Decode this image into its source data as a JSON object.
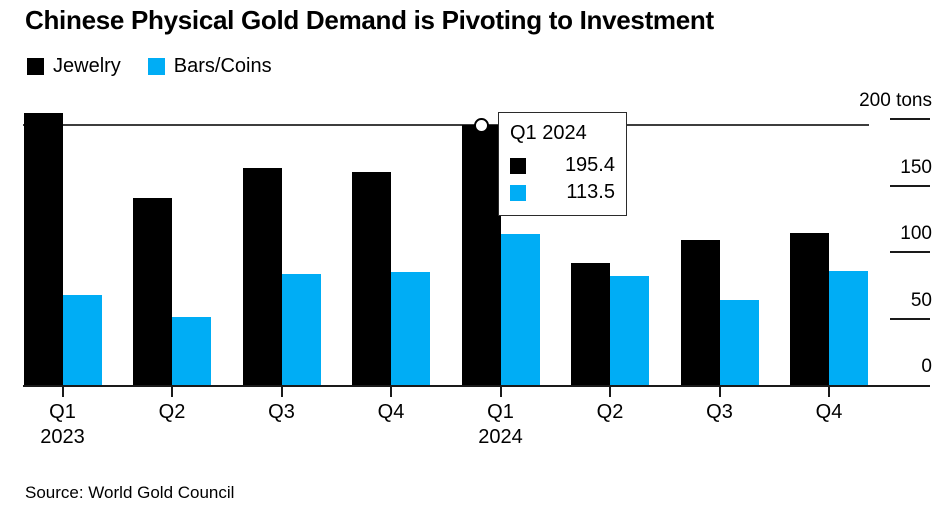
{
  "title": "Chinese Physical Gold Demand is Pivoting to Investment",
  "source": "Source: World Gold Council",
  "colors": {
    "jewelry": "#000000",
    "bars_coins": "#00adf5",
    "axis": "#1a1a1a",
    "hover_line": "#3d3d3d",
    "background": "#ffffff"
  },
  "legend": [
    {
      "label": "Jewelry",
      "color": "#000000"
    },
    {
      "label": "Bars/Coins",
      "color": "#00adf5"
    }
  ],
  "tooltip": {
    "title": "Q1 2024",
    "rows": [
      {
        "series": "Jewelry",
        "color": "#000000",
        "value": "195.4"
      },
      {
        "series": "Bars/Coins",
        "color": "#00adf5",
        "value": "113.5"
      }
    ]
  },
  "chart_data": {
    "type": "bar",
    "title": "Chinese Physical Gold Demand is Pivoting to Investment",
    "categories": [
      "Q1 2023",
      "Q2 2023",
      "Q3 2023",
      "Q4 2023",
      "Q1 2024",
      "Q2 2024",
      "Q3 2024",
      "Q4 2024"
    ],
    "x_tick_labels": [
      "Q1",
      "Q2",
      "Q3",
      "Q4",
      "Q1",
      "Q2",
      "Q3",
      "Q4"
    ],
    "x_year_labels": [
      {
        "index": 0,
        "label": "2023"
      },
      {
        "index": 4,
        "label": "2024"
      }
    ],
    "series": [
      {
        "name": "Jewelry",
        "color": "#000000",
        "values": [
          205.0,
          140.5,
          163.0,
          160.5,
          195.4,
          92.0,
          109.0,
          114.5
        ]
      },
      {
        "name": "Bars/Coins",
        "color": "#00adf5",
        "values": [
          67.5,
          51.5,
          83.5,
          85.0,
          113.5,
          82.0,
          64.0,
          86.0
        ]
      }
    ],
    "y_ticks": [
      {
        "label": "200 tons",
        "value": 200
      },
      {
        "label": "150",
        "value": 150
      },
      {
        "label": "100",
        "value": 100
      },
      {
        "label": "50",
        "value": 50
      },
      {
        "label": "0",
        "value": 0
      }
    ],
    "ylim": [
      0,
      200
    ],
    "unit": "tons",
    "grid": "off",
    "legend_position": "top-left",
    "y_axis_position": "right",
    "highlight": {
      "category": "Q1 2024",
      "marker": "open-circle-on-jewelry-bar",
      "crosshair_value": 195.4,
      "values": {
        "Jewelry": 195.4,
        "Bars/Coins": 113.5
      }
    }
  }
}
